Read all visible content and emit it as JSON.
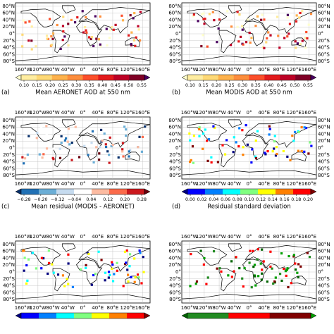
{
  "axes": {
    "lon_labels": [
      "160°W",
      "120°W",
      "80°W",
      "40°W",
      "0°",
      "40°E",
      "80°E",
      "120°E",
      "160°E"
    ],
    "lat_labels": [
      "80°N",
      "60°N",
      "40°N",
      "20°N",
      "0°",
      "20°S",
      "40°S",
      "60°S",
      "80°S"
    ]
  },
  "panels": [
    {
      "label": "(a)",
      "title": "Mean AERONET AOD at 550 nm",
      "colorbar_ticks": [
        "0.10",
        "0.15",
        "0.20",
        "0.25",
        "0.30",
        "0.35",
        "0.40",
        "0.45",
        "0.50",
        "0.55"
      ]
    },
    {
      "label": "(b)",
      "title": "Mean MODIS AOD at 550 nm",
      "colorbar_ticks": [
        "0.10",
        "0.15",
        "0.20",
        "0.25",
        "0.30",
        "0.35",
        "0.40",
        "0.45",
        "0.50",
        "0.55"
      ]
    },
    {
      "label": "(c)",
      "title": "Mean residual (MODIS - AERONET)",
      "colorbar_ticks": [
        "−0.28",
        "−0.20",
        "−0.12",
        "−0.04",
        "0.04",
        "0.12",
        "0.20",
        "0.28"
      ]
    },
    {
      "label": "(d)",
      "title": "Residual standard deviation",
      "colorbar_ticks": [
        "0.00",
        "0.02",
        "0.04",
        "0.06",
        "0.08",
        "0.10",
        "0.12",
        "0.14",
        "0.16",
        "0.18",
        "0.20"
      ]
    }
  ]
}
